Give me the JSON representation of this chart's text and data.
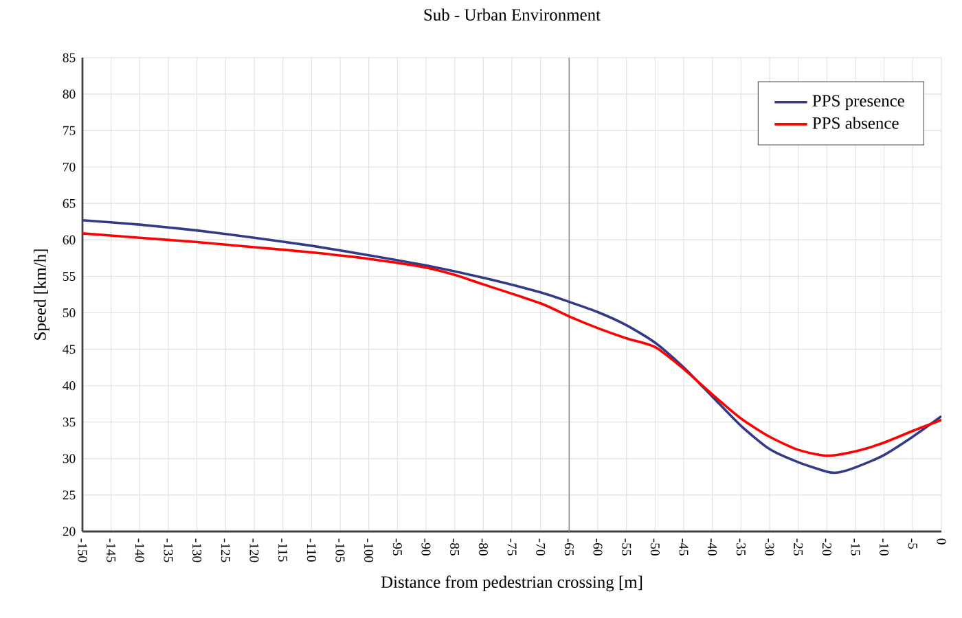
{
  "chart_data": {
    "type": "line",
    "title": "Sub - Urban Environment",
    "xlabel": "Distance from pedestrian crossing [m]",
    "ylabel": "Speed [km/h]",
    "xlim": [
      -150,
      0
    ],
    "xticks": [
      -150,
      -145,
      -140,
      -135,
      -130,
      -125,
      -120,
      -115,
      -110,
      -105,
      -100,
      -95,
      -90,
      -85,
      -80,
      -75,
      -70,
      -65,
      -60,
      -55,
      -50,
      -45,
      -40,
      -35,
      -30,
      -25,
      -20,
      -15,
      -10,
      -5,
      0
    ],
    "ylim": [
      20,
      85
    ],
    "yticks": [
      20,
      25,
      30,
      35,
      40,
      45,
      50,
      55,
      60,
      65,
      70,
      75,
      80,
      85
    ],
    "grid": true,
    "legend": "top right",
    "marker": "none",
    "line_style": "solid",
    "ref_lines": [
      {
        "axis": "x",
        "value": -65,
        "color": "#909090"
      }
    ],
    "series": [
      {
        "name": "PPS presence",
        "color": "#333a87",
        "x": [
          -150,
          -140,
          -130,
          -120,
          -110,
          -100,
          -90,
          -80,
          -70,
          -65,
          -60,
          -55,
          -50,
          -45,
          -40,
          -35,
          -30,
          -25,
          -20,
          -18,
          -15,
          -10,
          -5,
          0
        ],
        "values": [
          62.7,
          62.1,
          61.3,
          60.3,
          59.2,
          57.9,
          56.5,
          54.8,
          52.8,
          51.5,
          50.1,
          48.3,
          45.9,
          42.5,
          38.5,
          34.5,
          31.3,
          29.5,
          28.2,
          28.1,
          28.8,
          30.5,
          33,
          35.8
        ]
      },
      {
        "name": "PPS absence",
        "color": "#ff0000",
        "x": [
          -150,
          -140,
          -130,
          -120,
          -110,
          -100,
          -90,
          -85,
          -80,
          -70,
          -65,
          -60,
          -55,
          -50,
          -45,
          -40,
          -35,
          -30,
          -25,
          -20,
          -15,
          -10,
          -5,
          0
        ],
        "values": [
          60.9,
          60.3,
          59.7,
          59.0,
          58.3,
          57.4,
          56.2,
          55.2,
          53.9,
          51.3,
          49.5,
          47.9,
          46.5,
          45.3,
          42.3,
          38.8,
          35.5,
          33,
          31.2,
          30.4,
          31,
          32.2,
          33.8,
          35.3
        ]
      }
    ]
  }
}
